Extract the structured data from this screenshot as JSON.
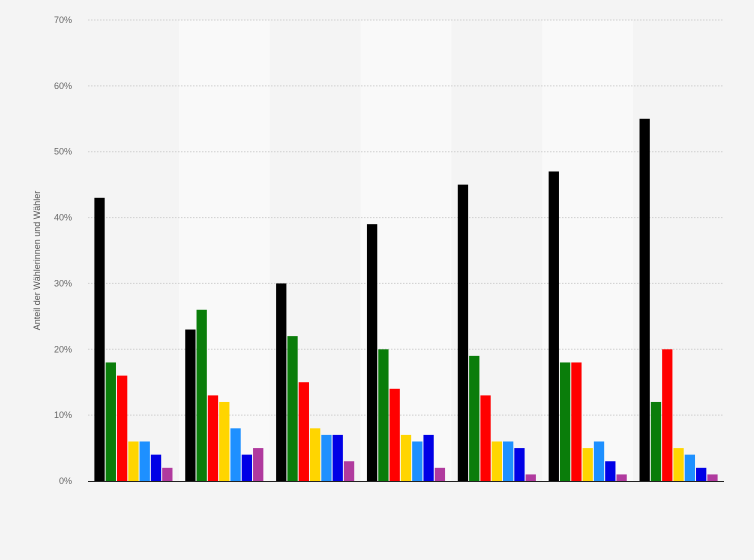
{
  "chart_data": {
    "type": "bar",
    "title": "",
    "xlabel": "",
    "ylabel": "Anteil der Wählerinnen und Wähler",
    "ylim": [
      0,
      70
    ],
    "yticks": [
      0,
      10,
      20,
      30,
      40,
      50,
      60,
      70
    ],
    "ytick_suffix": "%",
    "grid": true,
    "legend": "none",
    "categories": [
      "",
      "",
      "",
      "",
      "",
      "",
      ""
    ],
    "series": [
      {
        "color": "#000000",
        "values": [
          43,
          23,
          30,
          39,
          45,
          47,
          55
        ]
      },
      {
        "color": "#0a7d0a",
        "values": [
          18,
          26,
          22,
          20,
          19,
          18,
          12
        ]
      },
      {
        "color": "#ff0000",
        "values": [
          16,
          13,
          15,
          14,
          13,
          18,
          20
        ]
      },
      {
        "color": "#ffd500",
        "values": [
          6,
          12,
          8,
          7,
          6,
          5,
          5
        ]
      },
      {
        "color": "#1e90ff",
        "values": [
          6,
          8,
          7,
          6,
          6,
          6,
          4
        ]
      },
      {
        "color": "#0000e6",
        "values": [
          4,
          4,
          7,
          7,
          5,
          3,
          2
        ]
      },
      {
        "color": "#b03a9e",
        "values": [
          2,
          5,
          3,
          2,
          1,
          1,
          1
        ]
      }
    ]
  }
}
